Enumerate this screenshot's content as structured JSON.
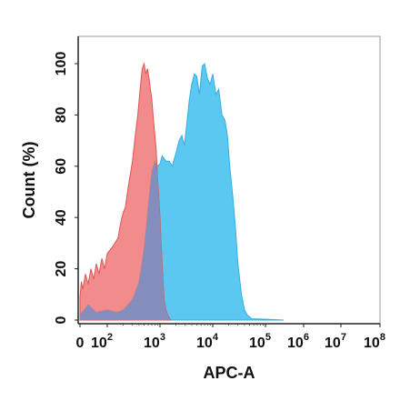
{
  "chart_data": {
    "type": "area",
    "title": "",
    "xlabel": "APC-A",
    "ylabel": "Count  (%)",
    "x_scale": "log",
    "xlim": [
      0,
      100000000
    ],
    "ylim": [
      0,
      110
    ],
    "grid": false,
    "legend": "none",
    "y_ticks": [
      "0",
      "20",
      "40",
      "60",
      "80",
      "100"
    ],
    "x_ticks": [
      {
        "base": "0",
        "exp": ""
      },
      {
        "base": "10",
        "exp": "2"
      },
      {
        "base": "10",
        "exp": "3"
      },
      {
        "base": "10",
        "exp": "4"
      },
      {
        "base": "10",
        "exp": "5"
      },
      {
        "base": "10",
        "exp": "6"
      },
      {
        "base": "10",
        "exp": "7"
      },
      {
        "base": "10",
        "exp": "8"
      }
    ],
    "series": [
      {
        "color": "#5bc8f2",
        "stroke": "#35aee3",
        "points": [
          [
            0,
            2
          ],
          [
            30,
            6
          ],
          [
            60,
            3
          ],
          [
            100,
            4
          ],
          [
            150,
            3
          ],
          [
            200,
            4
          ],
          [
            300,
            8
          ],
          [
            400,
            15
          ],
          [
            500,
            28
          ],
          [
            600,
            45
          ],
          [
            700,
            58
          ],
          [
            800,
            62
          ],
          [
            900,
            60
          ],
          [
            1000,
            61
          ],
          [
            1100,
            64
          ],
          [
            1300,
            62
          ],
          [
            1500,
            62
          ],
          [
            1700,
            60
          ],
          [
            2000,
            65
          ],
          [
            2300,
            70
          ],
          [
            2600,
            72
          ],
          [
            2900,
            68
          ],
          [
            3200,
            76
          ],
          [
            3600,
            86
          ],
          [
            4000,
            92
          ],
          [
            4500,
            96
          ],
          [
            5000,
            95
          ],
          [
            5600,
            88
          ],
          [
            6300,
            99
          ],
          [
            7000,
            100
          ],
          [
            8000,
            94
          ],
          [
            9000,
            92
          ],
          [
            10000,
            96
          ],
          [
            11500,
            88
          ],
          [
            13000,
            90
          ],
          [
            15000,
            80
          ],
          [
            17000,
            78
          ],
          [
            19000,
            72
          ],
          [
            21000,
            60
          ],
          [
            24000,
            48
          ],
          [
            27000,
            36
          ],
          [
            30000,
            22
          ],
          [
            35000,
            10
          ],
          [
            40000,
            4
          ],
          [
            45000,
            2
          ],
          [
            55000,
            0.5
          ],
          [
            80000,
            0.4
          ],
          [
            150000,
            0.2
          ],
          [
            300000,
            0
          ]
        ]
      },
      {
        "color": "#f07b7b",
        "stroke": "#e05555",
        "opacity": 0.88,
        "points": [
          [
            0,
            9
          ],
          [
            5,
            15
          ],
          [
            10,
            12
          ],
          [
            20,
            18
          ],
          [
            30,
            14
          ],
          [
            40,
            20
          ],
          [
            50,
            16
          ],
          [
            60,
            22
          ],
          [
            70,
            18
          ],
          [
            80,
            24
          ],
          [
            90,
            20
          ],
          [
            100,
            26
          ],
          [
            120,
            28
          ],
          [
            140,
            30
          ],
          [
            160,
            32
          ],
          [
            180,
            38
          ],
          [
            200,
            42
          ],
          [
            220,
            44
          ],
          [
            250,
            52
          ],
          [
            280,
            58
          ],
          [
            300,
            62
          ],
          [
            340,
            72
          ],
          [
            380,
            80
          ],
          [
            420,
            90
          ],
          [
            460,
            98
          ],
          [
            500,
            100
          ],
          [
            540,
            96
          ],
          [
            580,
            98
          ],
          [
            620,
            94
          ],
          [
            660,
            90
          ],
          [
            700,
            86
          ],
          [
            750,
            78
          ],
          [
            800,
            72
          ],
          [
            850,
            66
          ],
          [
            900,
            55
          ],
          [
            950,
            48
          ],
          [
            1000,
            40
          ],
          [
            1050,
            30
          ],
          [
            1100,
            22
          ],
          [
            1150,
            14
          ],
          [
            1200,
            8
          ],
          [
            1300,
            4
          ],
          [
            1400,
            2
          ],
          [
            1600,
            0
          ]
        ]
      }
    ]
  }
}
